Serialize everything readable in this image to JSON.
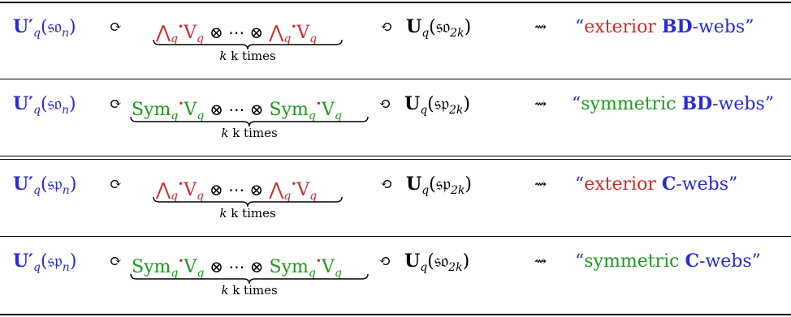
{
  "rows": [
    {
      "left_algebra": "U′",
      "left_q": "q",
      "left_lie": "(𝔰𝔬",
      "left_index": "n",
      "left_close": ")",
      "left_action": "⟳",
      "power_base": "⋀",
      "power_q": "q",
      "power_dot": "•",
      "vector": "V",
      "vector_q": "q",
      "tensor": "⊗ ⋯ ⊗",
      "power_base_2": "⋀",
      "power_q_2": "q",
      "power_dot_2": "•",
      "vector_2": "V",
      "vector_q_2": "q",
      "brace_label": "k times",
      "right_action": "⟲",
      "right_algebra": "U",
      "right_q": "q",
      "right_lie": "(𝔰𝔬",
      "right_index": "2k",
      "right_close": ")",
      "correspondence": "⇝",
      "web_open": "“",
      "web_kind": "exterior",
      "web_type": "BD",
      "web_suffix": "-webs”"
    },
    {
      "left_algebra": "U′",
      "left_q": "q",
      "left_lie": "(𝔰𝔬",
      "left_index": "n",
      "left_close": ")",
      "left_action": "⟳",
      "power_base": "Sym",
      "power_q": "q",
      "power_dot": "•",
      "vector": "V",
      "vector_q": "q",
      "tensor": "⊗ ⋯ ⊗",
      "power_base_2": "Sym",
      "power_q_2": "q",
      "power_dot_2": "•",
      "vector_2": "V",
      "vector_q_2": "q",
      "brace_label": "k times",
      "right_action": "⟲",
      "right_algebra": "U",
      "right_q": "q",
      "right_lie": "(𝔰𝔭",
      "right_index": "2k",
      "right_close": ")",
      "correspondence": "⇝",
      "web_open": "“",
      "web_kind": "symmetric",
      "web_type": "BD",
      "web_suffix": "-webs”"
    },
    {
      "left_algebra": "U′",
      "left_q": "q",
      "left_lie": "(𝔰𝔭",
      "left_index": "n",
      "left_close": ")",
      "left_action": "⟳",
      "power_base": "⋀",
      "power_q": "q",
      "power_dot": "•",
      "vector": "V",
      "vector_q": "q",
      "tensor": "⊗ ⋯ ⊗",
      "power_base_2": "⋀",
      "power_q_2": "q",
      "power_dot_2": "•",
      "vector_2": "V",
      "vector_q_2": "q",
      "brace_label": "k times",
      "right_action": "⟲",
      "right_algebra": "U",
      "right_q": "q",
      "right_lie": "(𝔰𝔭",
      "right_index": "2k",
      "right_close": ")",
      "correspondence": "⇝",
      "web_open": "“",
      "web_kind": "exterior",
      "web_type": "C",
      "web_suffix": "-webs”"
    },
    {
      "left_algebra": "U′",
      "left_q": "q",
      "left_lie": "(𝔰𝔭",
      "left_index": "n",
      "left_close": ")",
      "left_action": "⟳",
      "power_base": "Sym",
      "power_q": "q",
      "power_dot": "•",
      "vector": "V",
      "vector_q": "q",
      "tensor": "⊗ ⋯ ⊗",
      "power_base_2": "Sym",
      "power_q_2": "q",
      "power_dot_2": "•",
      "vector_2": "V",
      "vector_q_2": "q",
      "brace_label": "k times",
      "right_action": "⟲",
      "right_algebra": "U",
      "right_q": "q",
      "right_lie": "(𝔰𝔬",
      "right_index": "2k",
      "right_close": ")",
      "correspondence": "⇝",
      "web_open": "“",
      "web_kind": "symmetric",
      "web_type": "C",
      "web_suffix": "-webs”"
    }
  ],
  "colors": {
    "left": "#2a2ad6",
    "exterior": "#d42a2a",
    "symmetric": "#1e9a1e",
    "web_type": "#2a2ad6",
    "dot": "#d42a2a"
  }
}
